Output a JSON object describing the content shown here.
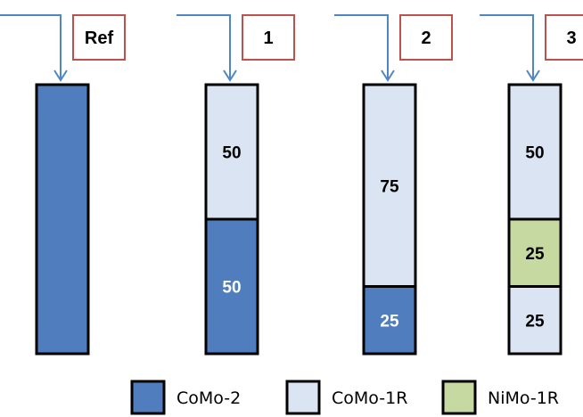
{
  "colors": {
    "CoMo-2": "#4f7dbd",
    "CoMo-1R": "#dbe4f2",
    "NiMo-1R": "#c6d9a1",
    "arrow": "#4f86c6",
    "label_border": "#c0504d"
  },
  "columns": [
    {
      "label": "Ref",
      "segments": [
        {
          "material": "CoMo-2",
          "text": "",
          "fraction": 1.0
        }
      ]
    },
    {
      "label": "1",
      "segments": [
        {
          "material": "CoMo-1R",
          "text": "50",
          "fraction": 0.5
        },
        {
          "material": "CoMo-2",
          "text": "50",
          "fraction": 0.5
        }
      ]
    },
    {
      "label": "2",
      "segments": [
        {
          "material": "CoMo-1R",
          "text": "75",
          "fraction": 0.75
        },
        {
          "material": "CoMo-2",
          "text": "25",
          "fraction": 0.25
        }
      ]
    },
    {
      "label": "3",
      "segments": [
        {
          "material": "CoMo-1R",
          "text": "50",
          "fraction": 0.5
        },
        {
          "material": "NiMo-1R",
          "text": "25",
          "fraction": 0.25
        },
        {
          "material": "CoMo-1R",
          "text": "25",
          "fraction": 0.25
        }
      ]
    }
  ],
  "legend": [
    {
      "label": "CoMo-2",
      "material": "CoMo-2"
    },
    {
      "label": "CoMo-1R",
      "material": "CoMo-1R"
    },
    {
      "label": "NiMo-1R",
      "material": "NiMo-1R"
    }
  ]
}
